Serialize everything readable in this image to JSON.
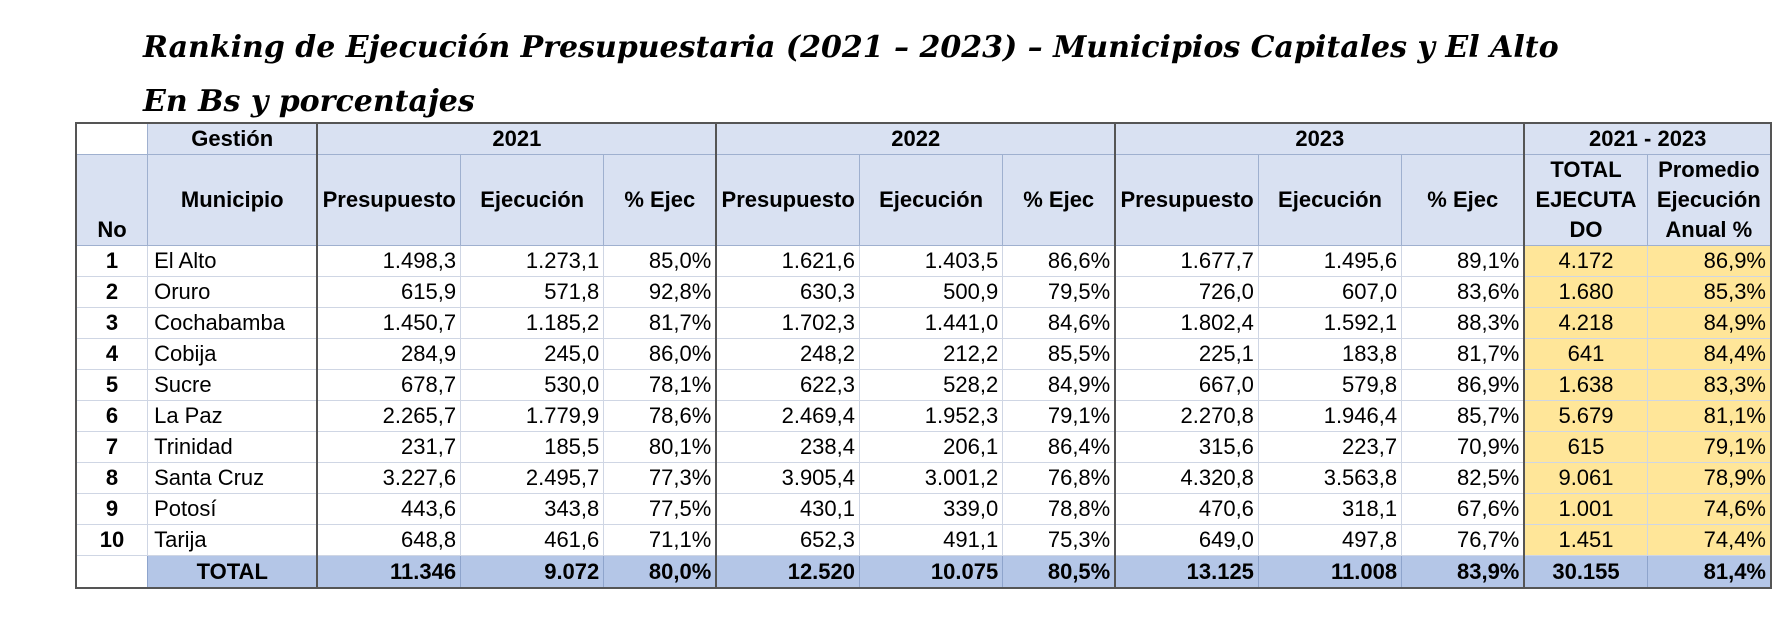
{
  "title": "Ranking de Ejecución Presupuestaria (2021 – 2023) – Municipios Capitales y El Alto",
  "subtitle": "En Bs y porcentajes",
  "header": {
    "gestion": "Gestión",
    "y2021": "2021",
    "y2022": "2022",
    "y2023": "2023",
    "range": "2021 - 2023",
    "no": "No",
    "municipio": "Municipio",
    "presupuesto": "Presupuesto",
    "ejecucion": "Ejecución",
    "pct": "% Ejec",
    "total_ejecutado": "TOTAL EJECUTA DO",
    "promedio": "Promedio Ejecución Anual %"
  },
  "rows": [
    {
      "no": "1",
      "mun": "El Alto",
      "p21": "1.498,3",
      "e21": "1.273,1",
      "x21": "85,0%",
      "p22": "1.621,6",
      "e22": "1.403,5",
      "x22": "86,6%",
      "p23": "1.677,7",
      "e23": "1.495,6",
      "x23": "89,1%",
      "tot": "4.172",
      "avg": "86,9%"
    },
    {
      "no": "2",
      "mun": "Oruro",
      "p21": "615,9",
      "e21": "571,8",
      "x21": "92,8%",
      "p22": "630,3",
      "e22": "500,9",
      "x22": "79,5%",
      "p23": "726,0",
      "e23": "607,0",
      "x23": "83,6%",
      "tot": "1.680",
      "avg": "85,3%"
    },
    {
      "no": "3",
      "mun": "Cochabamba",
      "p21": "1.450,7",
      "e21": "1.185,2",
      "x21": "81,7%",
      "p22": "1.702,3",
      "e22": "1.441,0",
      "x22": "84,6%",
      "p23": "1.802,4",
      "e23": "1.592,1",
      "x23": "88,3%",
      "tot": "4.218",
      "avg": "84,9%"
    },
    {
      "no": "4",
      "mun": "Cobija",
      "p21": "284,9",
      "e21": "245,0",
      "x21": "86,0%",
      "p22": "248,2",
      "e22": "212,2",
      "x22": "85,5%",
      "p23": "225,1",
      "e23": "183,8",
      "x23": "81,7%",
      "tot": "641",
      "avg": "84,4%"
    },
    {
      "no": "5",
      "mun": "Sucre",
      "p21": "678,7",
      "e21": "530,0",
      "x21": "78,1%",
      "p22": "622,3",
      "e22": "528,2",
      "x22": "84,9%",
      "p23": "667,0",
      "e23": "579,8",
      "x23": "86,9%",
      "tot": "1.638",
      "avg": "83,3%"
    },
    {
      "no": "6",
      "mun": "La Paz",
      "p21": "2.265,7",
      "e21": "1.779,9",
      "x21": "78,6%",
      "p22": "2.469,4",
      "e22": "1.952,3",
      "x22": "79,1%",
      "p23": "2.270,8",
      "e23": "1.946,4",
      "x23": "85,7%",
      "tot": "5.679",
      "avg": "81,1%"
    },
    {
      "no": "7",
      "mun": "Trinidad",
      "p21": "231,7",
      "e21": "185,5",
      "x21": "80,1%",
      "p22": "238,4",
      "e22": "206,1",
      "x22": "86,4%",
      "p23": "315,6",
      "e23": "223,7",
      "x23": "70,9%",
      "tot": "615",
      "avg": "79,1%"
    },
    {
      "no": "8",
      "mun": "Santa Cruz",
      "p21": "3.227,6",
      "e21": "2.495,7",
      "x21": "77,3%",
      "p22": "3.905,4",
      "e22": "3.001,2",
      "x22": "76,8%",
      "p23": "4.320,8",
      "e23": "3.563,8",
      "x23": "82,5%",
      "tot": "9.061",
      "avg": "78,9%"
    },
    {
      "no": "9",
      "mun": "Potosí",
      "p21": "443,6",
      "e21": "343,8",
      "x21": "77,5%",
      "p22": "430,1",
      "e22": "339,0",
      "x22": "78,8%",
      "p23": "470,6",
      "e23": "318,1",
      "x23": "67,6%",
      "tot": "1.001",
      "avg": "74,6%"
    },
    {
      "no": "10",
      "mun": "Tarija",
      "p21": "648,8",
      "e21": "461,6",
      "x21": "71,1%",
      "p22": "652,3",
      "e22": "491,1",
      "x22": "75,3%",
      "p23": "649,0",
      "e23": "497,8",
      "x23": "76,7%",
      "tot": "1.451",
      "avg": "74,4%"
    }
  ],
  "total": {
    "label": "TOTAL",
    "p21": "11.346",
    "e21": "9.072",
    "x21": "80,0%",
    "p22": "12.520",
    "e22": "10.075",
    "x22": "80,5%",
    "p23": "13.125",
    "e23": "11.008",
    "x23": "83,9%",
    "tot": "30.155",
    "avg": "81,4%"
  },
  "colors": {
    "header_bg": "#d9e1f2",
    "total_bg": "#b4c6e7",
    "highlight_bg": "#ffe699"
  }
}
